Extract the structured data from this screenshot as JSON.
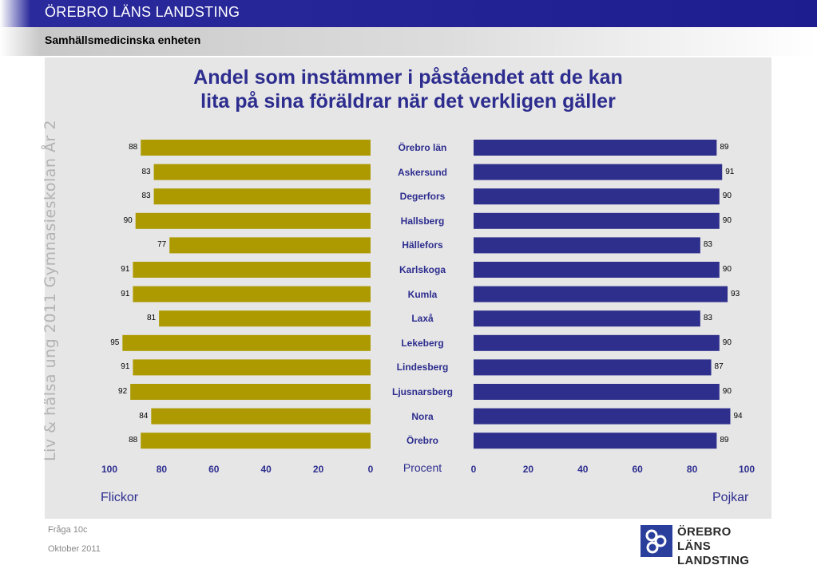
{
  "header": {
    "org": "ÖREBRO LÄNS LANDSTING",
    "unit": "Samhällsmedicinska enheten"
  },
  "side_text": "Liv & hälsa ung 2011 Gymnasieskolan År 2",
  "footer": {
    "question": "Fråga 10c",
    "date": "Oktober 2011"
  },
  "logo": {
    "line1": "ÖREBRO LÄNS",
    "line2": "LANDSTING"
  },
  "colors": {
    "flickor": "#ad9a00",
    "pojkar": "#2e2e8c",
    "text": "#2d2d8f",
    "panel": "#e6e6e6"
  },
  "chart_data": {
    "type": "bar",
    "title_lines": [
      "Andel som instämmer i påståendet att de kan",
      "lita på sina föräldrar när det verkligen gäller"
    ],
    "categories": [
      "Örebro län",
      "Askersund",
      "Degerfors",
      "Hallsberg",
      "Hällefors",
      "Karlskoga",
      "Kumla",
      "Laxå",
      "Lekeberg",
      "Lindesberg",
      "Ljusnarsberg",
      "Nora",
      "Örebro"
    ],
    "series": [
      {
        "name": "Flickor",
        "values": [
          88,
          83,
          83,
          90,
          77,
          91,
          91,
          81,
          95,
          91,
          92,
          84,
          88
        ]
      },
      {
        "name": "Pojkar",
        "values": [
          89,
          91,
          90,
          90,
          83,
          90,
          93,
          83,
          90,
          87,
          90,
          94,
          89
        ]
      }
    ],
    "xlabel": "Procent",
    "xlim": [
      0,
      100
    ],
    "ticks_left": [
      "100",
      "80",
      "60",
      "40",
      "20",
      "0"
    ],
    "ticks_right": [
      "0",
      "20",
      "40",
      "60",
      "80",
      "100"
    ],
    "orientation": "horizontal, mirrored",
    "data_labels": true
  }
}
